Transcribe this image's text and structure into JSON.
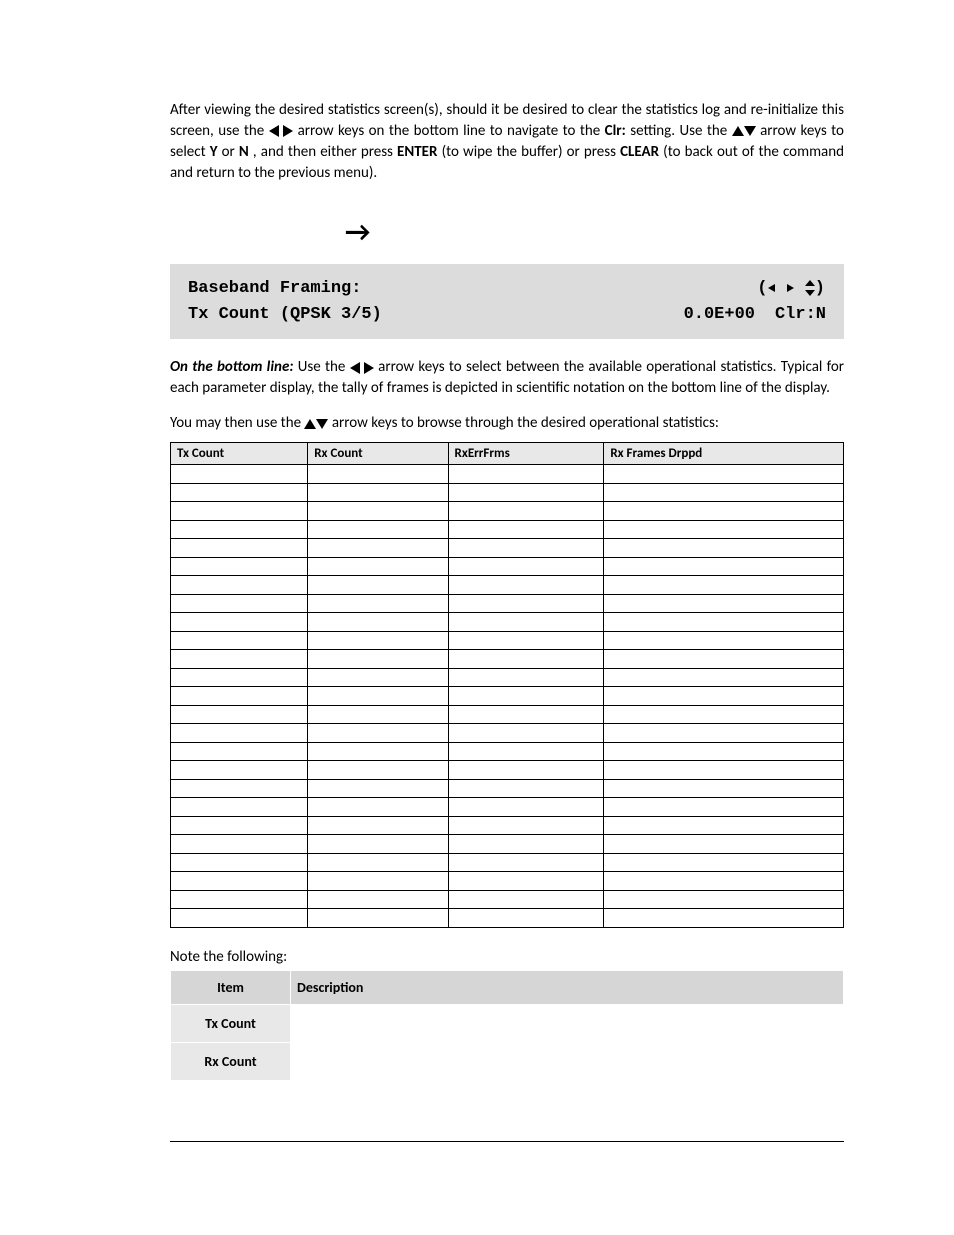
{
  "paragraphs": {
    "p1_a": "After viewing the desired statistics screen(s), should it be desired to clear the statistics log and re-initialize this screen, use the ",
    "p1_b": " arrow keys on the bottom line to navigate to the ",
    "p1_clr": "Clr:",
    "p1_c": " setting. Use the ",
    "p1_d": " arrow keys to select ",
    "p1_y": "Y",
    "p1_or": " or ",
    "p1_n": "N",
    "p1_e": ", and then either press ",
    "p1_enter": "ENTER",
    "p1_f": " (to wipe the buffer) or press ",
    "p1_clear": "CLEAR",
    "p1_g": " (to back out of the command and return to the previous menu)."
  },
  "lcd": {
    "line1_left": "Baseband Framing:",
    "line2_left": "Tx Count (QPSK 3/5)",
    "line2_value": "0.0E+00",
    "line2_clr": "Clr:N"
  },
  "paragraphs2": {
    "p2_lead": "On the bottom line:",
    "p2_a": " Use the ",
    "p2_b": " arrow keys to select between the available operational statistics. Typical for each parameter display, the tally of frames is depicted in scientific notation on the bottom line of the display.",
    "p3_a": "You may then use the ",
    "p3_b": " arrow keys to browse through the desired operational statistics:"
  },
  "stats_table": {
    "columns": [
      "Tx Count",
      "Rx Count",
      "RxErrFrms",
      "Rx Frames Drppd"
    ],
    "num_rows": 25,
    "header_bg": "#e8e8e8",
    "border_color": "#000000",
    "header_fontsize": 13,
    "row_height": 18.5
  },
  "note_heading": "Note the following:",
  "desc_table": {
    "headers": [
      "Item",
      "Description"
    ],
    "rows": [
      {
        "item": "Tx Count",
        "desc": ""
      },
      {
        "item": "Rx Count",
        "desc": ""
      }
    ],
    "header_bg": "#d6d6d6",
    "item_bg": "#e8e8e8",
    "fontsize": 14
  },
  "colors": {
    "background": "#ffffff",
    "text": "#000000",
    "lcd_bg": "#dcdcdc",
    "table_header_bg": "#e8e8e8",
    "desc_header_bg": "#d6d6d6"
  }
}
